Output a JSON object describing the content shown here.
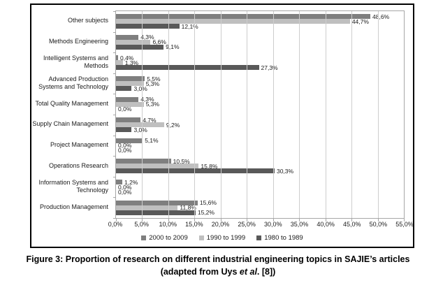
{
  "figure": {
    "caption_line1": "Figure 3: Proportion of research on different industrial engineering topics in SAJIE’s articles",
    "caption_line2_prefix": "(adapted from Uys ",
    "caption_line2_italic": "et al",
    "caption_line2_suffix": ". [8])"
  },
  "chart_data": {
    "type": "bar",
    "orientation": "horizontal",
    "title": "",
    "xlabel": "",
    "ylabel": "",
    "categories": [
      "Other subjects",
      "Methods Engineering",
      "Intelligent Systems and Methods",
      "Advanced Production Systems and Technology",
      "Total Quality Management",
      "Supply Chain Management",
      "Project Management",
      "Operations Research",
      "Information Systems and Technology",
      "Production Management"
    ],
    "series": [
      {
        "name": "2000 to 2009",
        "color": "#7f7f7f",
        "values": [
          48.6,
          4.3,
          0.4,
          5.5,
          4.3,
          4.7,
          5.1,
          10.5,
          1.2,
          15.6
        ]
      },
      {
        "name": "1990 to 1999",
        "color": "#bfbfbf",
        "values": [
          44.7,
          6.6,
          1.3,
          5.3,
          5.3,
          9.2,
          0.0,
          15.8,
          0.0,
          11.8
        ]
      },
      {
        "name": "1980 to 1989",
        "color": "#595959",
        "values": [
          12.1,
          9.1,
          27.3,
          3.0,
          0.0,
          3.0,
          0.0,
          30.3,
          0.0,
          15.2
        ]
      }
    ],
    "xlim": [
      0,
      55
    ],
    "tick_step": 5,
    "tick_labels": [
      "0,0%",
      "5,0%",
      "10,0%",
      "15,0%",
      "20,0%",
      "25,0%",
      "30,0%",
      "35,0%",
      "40,0%",
      "45,0%",
      "50,0%",
      "55,0%"
    ],
    "value_label_format": "comma-decimal-percent",
    "grid": true,
    "legend_position": "bottom",
    "colors": {
      "grid": "#cdcdcd",
      "plot_border": "#a6a6a6",
      "frame_border": "#000000"
    }
  }
}
